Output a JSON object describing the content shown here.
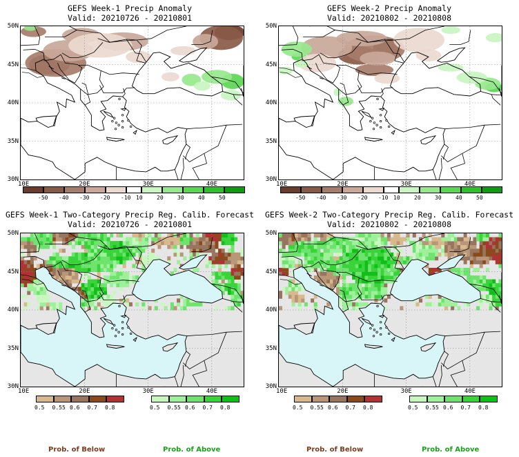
{
  "panels": [
    {
      "id": "tl",
      "title": "GEFS Week-1 Precip Anomaly",
      "valid": "Valid: 20210726 - 20210801",
      "kind": "anomaly"
    },
    {
      "id": "tr",
      "title": "GEFS Week-2 Precip Anomaly",
      "valid": "Valid: 20210802 - 20210808",
      "kind": "anomaly"
    },
    {
      "id": "bl",
      "title": "GEFS Week-1 Two-Category Precip Reg. Calib. Forecast",
      "valid": "Valid: 20210726 - 20210801",
      "kind": "prob"
    },
    {
      "id": "br",
      "title": "GEFS Week-2 Two-Category Precip Reg. Calib. Forecast",
      "valid": "Valid: 20210802 - 20210808",
      "kind": "prob"
    }
  ],
  "axes": {
    "lat_labels": [
      "50N",
      "45N",
      "40N",
      "35N",
      "30N"
    ],
    "lon_labels": [
      "10E",
      "20E",
      "30E",
      "40E"
    ]
  },
  "anomaly_colorbar": {
    "ticks": [
      "-50",
      "-40",
      "-30",
      "-20",
      "-10",
      "10",
      "20",
      "30",
      "40",
      "50"
    ],
    "colors": [
      "#6b3b2e",
      "#8a5a48",
      "#a67c6a",
      "#c9a89a",
      "#ecd9cf",
      "#ffffff",
      "#c8f5c0",
      "#96e88c",
      "#5cd655",
      "#2fbf2c",
      "#0e9a12"
    ]
  },
  "prob_below_colorbar": {
    "ticks": [
      "0.5",
      "0.55",
      "0.6",
      "0.7",
      "0.8"
    ],
    "colors": [
      "#d8b98e",
      "#b89677",
      "#98755f",
      "#8a4b1c",
      "#b03234"
    ]
  },
  "prob_above_colorbar": {
    "ticks": [
      "0.5",
      "0.55",
      "0.6",
      "0.7",
      "0.8"
    ],
    "colors": [
      "#c8f8c0",
      "#9ef09a",
      "#6ee46e",
      "#38d43a",
      "#10c018"
    ]
  },
  "labels": {
    "prob_below": "Prob. of Below",
    "prob_above": "Prob. of Above"
  },
  "colors": {
    "prob_below_text": "#7a3c1e",
    "prob_above_text": "#1aa01a",
    "sea": "#d8f6f8",
    "land_missing": "#e6e6e6"
  }
}
